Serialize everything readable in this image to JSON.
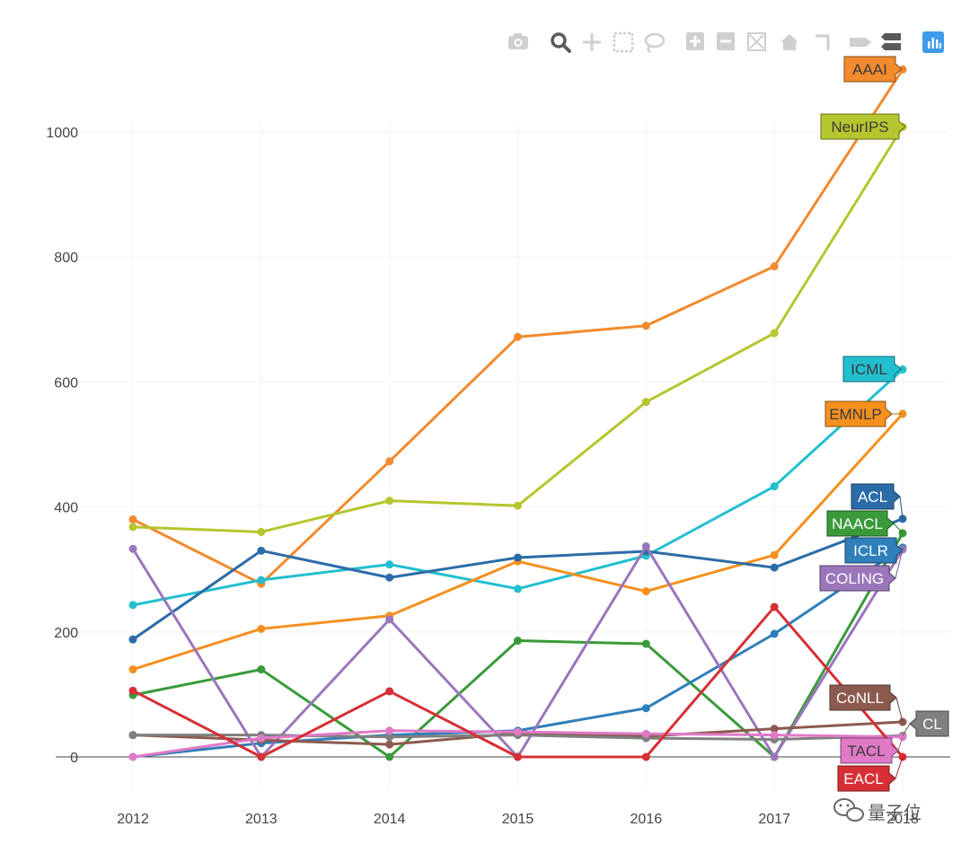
{
  "modebar": {
    "buttons": [
      {
        "name": "camera-icon",
        "title": "Download plot as a png"
      },
      {
        "name": "zoom-icon",
        "title": "Zoom"
      },
      {
        "name": "pan-icon",
        "title": "Pan"
      },
      {
        "name": "box-select-icon",
        "title": "Box Select"
      },
      {
        "name": "lasso-select-icon",
        "title": "Lasso Select"
      },
      {
        "name": "zoom-in-icon",
        "title": "Zoom in"
      },
      {
        "name": "zoom-out-icon",
        "title": "Zoom out"
      },
      {
        "name": "autoscale-icon",
        "title": "Autoscale"
      },
      {
        "name": "reset-axes-icon",
        "title": "Reset axes"
      },
      {
        "name": "spike-lines-icon",
        "title": "Toggle Spike Lines"
      },
      {
        "name": "hover-closest-icon",
        "title": "Show closest data on hover"
      },
      {
        "name": "hover-compare-icon",
        "title": "Compare data on hover"
      },
      {
        "name": "plotly-logo-icon",
        "title": "Produced with Plotly"
      }
    ]
  },
  "watermark": {
    "text": "量子位",
    "icon": "wechat-icon"
  },
  "chart_data": {
    "type": "line",
    "title": "",
    "xlabel": "",
    "ylabel": "",
    "x": [
      "2012",
      "2013",
      "2014",
      "2015",
      "2016",
      "2017",
      "2018"
    ],
    "xlim": [
      2012,
      2018
    ],
    "ylim": [
      -75,
      1130
    ],
    "yticks": [
      0,
      200,
      400,
      600,
      800,
      1000
    ],
    "grid": true,
    "series": [
      {
        "name": "AAAI",
        "color": "#f28a2e",
        "values": [
          380,
          277,
          473,
          672,
          690,
          785,
          1100
        ]
      },
      {
        "name": "NeurIPS",
        "color": "#b6c62e",
        "values": [
          368,
          360,
          410,
          402,
          568,
          678,
          1008
        ]
      },
      {
        "name": "ICML",
        "color": "#23bfcf",
        "values": [
          243,
          283,
          308,
          269,
          322,
          433,
          620
        ]
      },
      {
        "name": "EMNLP",
        "color": "#f5901f",
        "values": [
          140,
          205,
          226,
          313,
          265,
          323,
          549
        ]
      },
      {
        "name": "ACL",
        "color": "#2b6ca8",
        "values": [
          188,
          330,
          287,
          319,
          329,
          303,
          381
        ]
      },
      {
        "name": "NAACL",
        "color": "#3a9a3a",
        "values": [
          99,
          140,
          0,
          186,
          181,
          0,
          358
        ]
      },
      {
        "name": "ICLR",
        "color": "#2f7fba",
        "values": [
          0,
          22,
          35,
          42,
          78,
          197,
          335
        ]
      },
      {
        "name": "COLING",
        "color": "#9b76bb",
        "values": [
          333,
          0,
          220,
          0,
          337,
          0,
          332
        ]
      },
      {
        "name": "CoNLL",
        "color": "#8c5a4e",
        "values": [
          35,
          27,
          20,
          38,
          33,
          45,
          56
        ]
      },
      {
        "name": "CL",
        "color": "#7f7f7f",
        "values": [
          35,
          35,
          32,
          35,
          30,
          28,
          34
        ]
      },
      {
        "name": "TACL",
        "color": "#e07ac7",
        "values": [
          0,
          30,
          42,
          40,
          37,
          35,
          32
        ]
      },
      {
        "name": "EACL",
        "color": "#d62f35",
        "values": [
          106,
          0,
          105,
          0,
          0,
          240,
          0
        ]
      }
    ],
    "hover_labels": [
      "AAAI",
      "NeurIPS",
      "ICML",
      "EMNLP",
      "ACL",
      "NAACL",
      "ICLR",
      "COLING",
      "CoNLL",
      "CL",
      "TACL",
      "EACL"
    ]
  }
}
